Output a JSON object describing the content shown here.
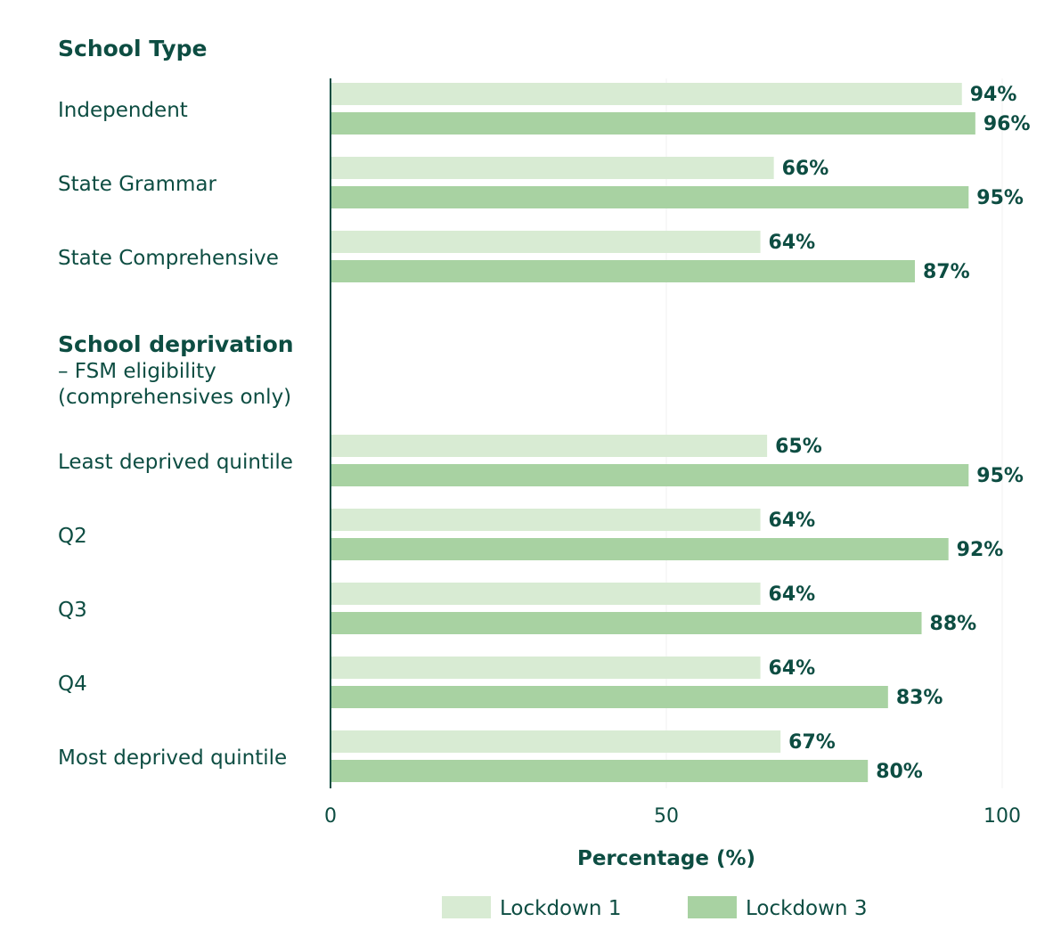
{
  "chart_data": {
    "type": "bar",
    "orientation": "horizontal",
    "xlabel": "Percentage (%)",
    "xlim": [
      0,
      100
    ],
    "xticks": [
      "0",
      "50",
      "100"
    ],
    "grid": "vertical at 50 and 100 (faint)",
    "legend_placement": "bottom",
    "colors": {
      "Lockdown 1": "#d8ebd3",
      "Lockdown 3": "#a8d2a2",
      "text": "#0d4d42"
    },
    "sections": [
      {
        "title": "School Type",
        "subtitle": [],
        "categories": [
          "Independent",
          "State Grammar",
          "State Comprehensive"
        ]
      },
      {
        "title": "School deprivation",
        "subtitle": [
          "– FSM eligibility",
          "(comprehensives only)"
        ],
        "categories": [
          "Least deprived quintile",
          "Q2",
          "Q3",
          "Q4",
          "Most deprived quintile"
        ]
      }
    ],
    "categories": [
      "Independent",
      "State Grammar",
      "State Comprehensive",
      "Least deprived quintile",
      "Q2",
      "Q3",
      "Q4",
      "Most deprived quintile"
    ],
    "series": [
      {
        "name": "Lockdown 1",
        "values": [
          94,
          66,
          64,
          65,
          64,
          64,
          64,
          67
        ]
      },
      {
        "name": "Lockdown 3",
        "values": [
          96,
          95,
          87,
          95,
          92,
          88,
          83,
          80
        ]
      }
    ]
  }
}
